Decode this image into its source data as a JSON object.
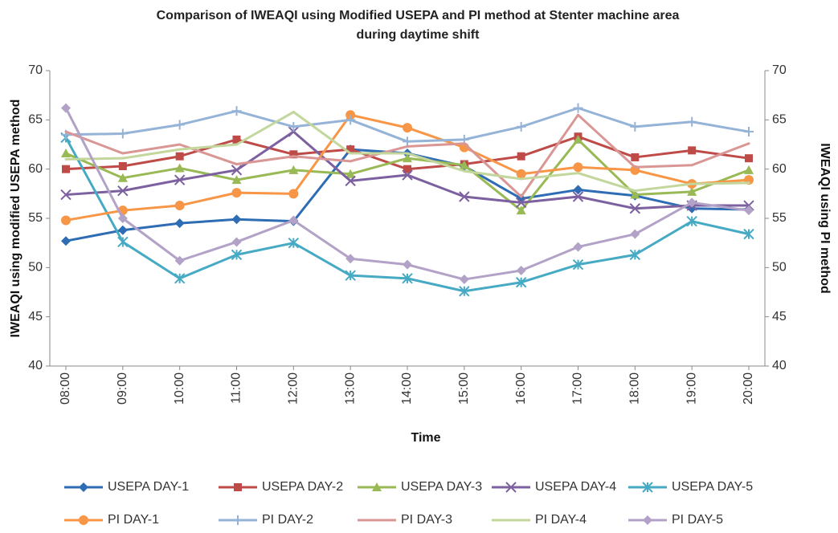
{
  "chart_data": {
    "type": "line",
    "title": "Comparison of IWEAQI using Modified USEPA and PI method at Stenter machine area during daytime shift",
    "x_label": "Time",
    "y_label": "IWEAQI using modified USEPA method",
    "y2_label": "IWEAQI using PI method",
    "categories": [
      "08:00",
      "09:00",
      "10:00",
      "11:00",
      "12:00",
      "13:00",
      "14:00",
      "15:00",
      "16:00",
      "17:00",
      "18:00",
      "19:00",
      "20:00"
    ],
    "ylim": [
      40,
      70
    ],
    "yticks": [
      40,
      45,
      50,
      55,
      60,
      65,
      70
    ],
    "y2lim": [
      40,
      70
    ],
    "y2ticks": [
      40,
      45,
      50,
      55,
      60,
      65,
      70
    ],
    "grid": false,
    "legend": "bottom",
    "series": [
      {
        "name": "USEPA DAY-1",
        "color": "#2e6db4",
        "marker": "diamond",
        "values": [
          52.7,
          53.8,
          54.5,
          54.9,
          54.7,
          62.0,
          61.6,
          60.3,
          57.0,
          57.9,
          57.3,
          56.0,
          55.9
        ]
      },
      {
        "name": "USEPA DAY-2",
        "color": "#be4b48",
        "marker": "square",
        "values": [
          60.0,
          60.3,
          61.3,
          63.0,
          61.5,
          62.0,
          60.0,
          60.5,
          61.3,
          63.3,
          61.2,
          61.9,
          61.1
        ]
      },
      {
        "name": "USEPA DAY-3",
        "color": "#98b954",
        "marker": "triangle",
        "values": [
          61.6,
          59.1,
          60.1,
          58.9,
          59.9,
          59.5,
          61.1,
          60.4,
          55.8,
          63.0,
          57.4,
          57.7,
          59.9
        ]
      },
      {
        "name": "USEPA DAY-4",
        "color": "#7d60a0",
        "marker": "x",
        "values": [
          57.4,
          57.8,
          58.9,
          59.9,
          63.8,
          58.8,
          59.4,
          57.2,
          56.6,
          57.2,
          56.0,
          56.3,
          56.3
        ]
      },
      {
        "name": "USEPA DAY-5",
        "color": "#46aac5",
        "marker": "star",
        "values": [
          63.2,
          52.6,
          48.9,
          51.3,
          52.5,
          49.2,
          48.9,
          47.6,
          48.5,
          50.3,
          51.3,
          54.7,
          53.4
        ]
      },
      {
        "name": "PI DAY-1",
        "color": "#f79646",
        "marker": "circle",
        "axis": "y2",
        "values": [
          54.8,
          55.8,
          56.3,
          57.6,
          57.5,
          65.5,
          64.2,
          62.2,
          59.5,
          60.2,
          59.9,
          58.5,
          58.9
        ]
      },
      {
        "name": "PI DAY-2",
        "color": "#95b3d7",
        "marker": "plus",
        "axis": "y2",
        "values": [
          63.5,
          63.6,
          64.5,
          65.9,
          64.3,
          65.0,
          62.8,
          63.0,
          64.3,
          66.2,
          64.3,
          64.8,
          63.8
        ]
      },
      {
        "name": "PI DAY-3",
        "color": "#d99694",
        "marker": "none",
        "axis": "y2",
        "values": [
          63.8,
          61.6,
          62.5,
          60.5,
          61.3,
          60.8,
          62.3,
          62.6,
          57.2,
          65.5,
          60.2,
          60.4,
          62.6
        ]
      },
      {
        "name": "PI DAY-4",
        "color": "#c3d69b",
        "marker": "none",
        "axis": "y2",
        "values": [
          61.0,
          61.1,
          62.0,
          62.5,
          65.8,
          61.6,
          61.6,
          59.8,
          59.0,
          59.6,
          57.8,
          58.5,
          58.6
        ]
      },
      {
        "name": "PI DAY-5",
        "color": "#b3a2c7",
        "marker": "diamond",
        "axis": "y2",
        "values": [
          66.2,
          55.0,
          50.7,
          52.6,
          54.8,
          50.9,
          50.3,
          48.8,
          49.7,
          52.1,
          53.4,
          56.6,
          55.8
        ]
      }
    ]
  }
}
